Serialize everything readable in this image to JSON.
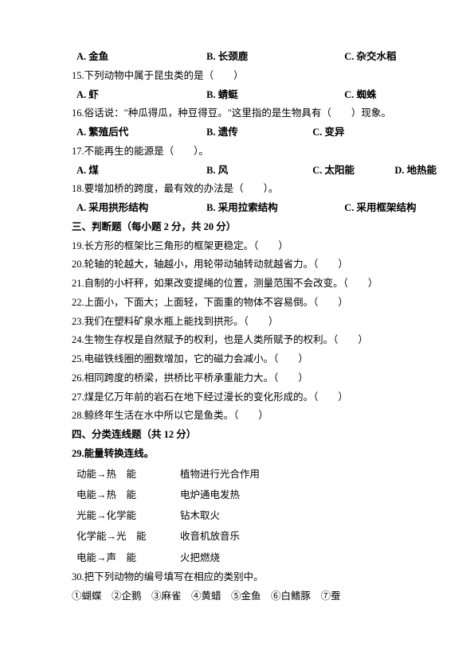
{
  "q14opts": {
    "a": "A. 金鱼",
    "b": "B. 长颈鹿",
    "c": "C. 杂交水稻"
  },
  "q15": {
    "stem": "15.下列动物中属于昆虫类的是（　　）",
    "a": "A. 虾",
    "b": "B. 蜻蜓",
    "c": "C. 蜘蛛"
  },
  "q16": {
    "stem": "16.俗话说：\"种瓜得瓜，种豆得豆。\"这里指的是生物具有（　　）现象。",
    "a": "A. 繁殖后代",
    "b": "B. 遗传",
    "c": "C. 变异"
  },
  "q17": {
    "stem": "17.不能再生的能源是（　　）。",
    "a": "A. 煤",
    "b": "B. 风",
    "c": "C. 太阳能",
    "d": "D. 地热能"
  },
  "q18": {
    "stem": "18.要增加桥的跨度，最有效的办法是（　　）。",
    "a": "A. 采用拱形结构",
    "b": "B. 采用拉索结构",
    "c": "C. 采用框架结构"
  },
  "sec3": "三、判断题（每小题 2 分，共 20 分）",
  "j19": "19.长方形的框架比三角形的框架更稳定。（　　）",
  "j20": "20.轮轴的轮越大，轴越小，用轮带动轴转动就越省力。（　　）",
  "j21": "21.自制的小杆秤，如果改变提绳的位置，测量范围不会改变。（　　）",
  "j22": "22.上面小，下面大；上面轻，下面重的物体不容易倒。（　　）",
  "j23": "23.我们在塑料矿泉水瓶上能找到拱形。（　　）",
  "j24": "24.生物生存权是自然赋予的权利，也是人类所赋予的权利。（　　）",
  "j25": "25.电磁铁线圈的圈数增加，它的磁力会减小。（　　）",
  "j26": "26.相同跨度的桥梁，拱桥比平桥承重能力大。（　　）",
  "j27": "27.煤是亿万年前的岩石在地下经过漫长的变化形成的。（　　）",
  "j28": "28.鲸终年生活在水中所以它是鱼类。（　　）",
  "sec4": "四、分类连线题（共 12 分）",
  "q29title": "29.能量转换连线。",
  "q29rows": [
    {
      "l": "动能→热　能",
      "r": "植物进行光合作用"
    },
    {
      "l": "电能→热　能",
      "r": "电炉通电发热"
    },
    {
      "l": "光能→化学能",
      "r": "钻木取火"
    },
    {
      "l": "化学能→光　能",
      "r": "收音机放音乐"
    },
    {
      "l": "电能→声　能",
      "r": "火把燃烧"
    }
  ],
  "q30": "30.把下列动物的编号填写在相应的类别中。",
  "q30items": "①蝴蝶　②企鹅　③麻雀　④黄蜡　⑤金鱼　⑥白鳍豚　⑦蚕"
}
